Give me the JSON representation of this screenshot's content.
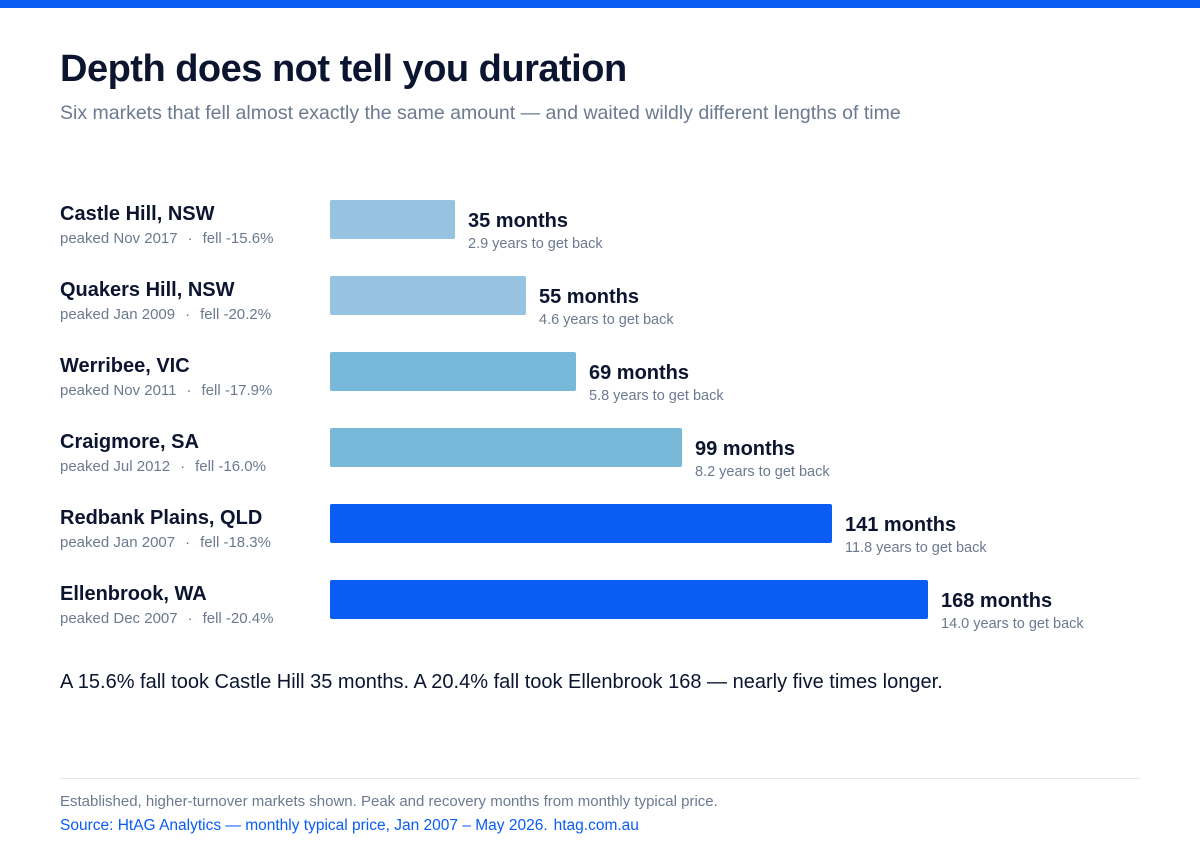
{
  "header": {
    "title": "Depth does not tell you duration",
    "subtitle": "Six markets that fell almost exactly the same amount — and waited wildly different lengths of time"
  },
  "colors": {
    "accent": "#0a5cf5",
    "bar_short": "#95c3e0",
    "bar_mid": "#78b8d8",
    "bar_long": "#0a5cf5"
  },
  "chart_data": {
    "type": "bar",
    "orientation": "horizontal",
    "unit": "months",
    "xlim": [
      0,
      168
    ],
    "grid": false,
    "rows": [
      {
        "market": "Castle Hill, NSW",
        "peaked_label": "peaked Nov 2017",
        "fell_label": "fell -15.6%",
        "peaked": "Nov 2017",
        "fall_pct": -15.6,
        "months": 35,
        "months_label": "35 months",
        "years_label": "2.9 years to get back",
        "color": "#95c3e0"
      },
      {
        "market": "Quakers Hill, NSW",
        "peaked_label": "peaked Jan 2009",
        "fell_label": "fell -20.2%",
        "peaked": "Jan 2009",
        "fall_pct": -20.2,
        "months": 55,
        "months_label": "55 months",
        "years_label": "4.6 years to get back",
        "color": "#95c3e0"
      },
      {
        "market": "Werribee, VIC",
        "peaked_label": "peaked Nov 2011",
        "fell_label": "fell -17.9%",
        "peaked": "Nov 2011",
        "fall_pct": -17.9,
        "months": 69,
        "months_label": "69 months",
        "years_label": "5.8 years to get back",
        "color": "#78b8d8"
      },
      {
        "market": "Craigmore, SA",
        "peaked_label": "peaked Jul 2012",
        "fell_label": "fell -16.0%",
        "peaked": "Jul 2012",
        "fall_pct": -16.0,
        "months": 99,
        "months_label": "99 months",
        "years_label": "8.2 years to get back",
        "color": "#78b8d8"
      },
      {
        "market": "Redbank Plains, QLD",
        "peaked_label": "peaked Jan 2007",
        "fell_label": "fell -18.3%",
        "peaked": "Jan 2007",
        "fall_pct": -18.3,
        "months": 141,
        "months_label": "141 months",
        "years_label": "11.8 years to get back",
        "color": "#0a5cf5"
      },
      {
        "market": "Ellenbrook, WA",
        "peaked_label": "peaked Dec 2007",
        "fell_label": "fell -20.4%",
        "peaked": "Dec 2007",
        "fall_pct": -20.4,
        "months": 168,
        "months_label": "168 months",
        "years_label": "14.0 years to get back",
        "color": "#0a5cf5"
      }
    ]
  },
  "takeaway": "A 15.6% fall took Castle Hill 35 months. A 20.4% fall took Ellenbrook 168 — nearly five times longer.",
  "footer": {
    "note": "Established, higher-turnover markets shown. Peak and recovery months from monthly typical price.",
    "source": "Source: HtAG Analytics — monthly typical price, Jan 2007 – May 2026.",
    "url": "htag.com.au"
  }
}
